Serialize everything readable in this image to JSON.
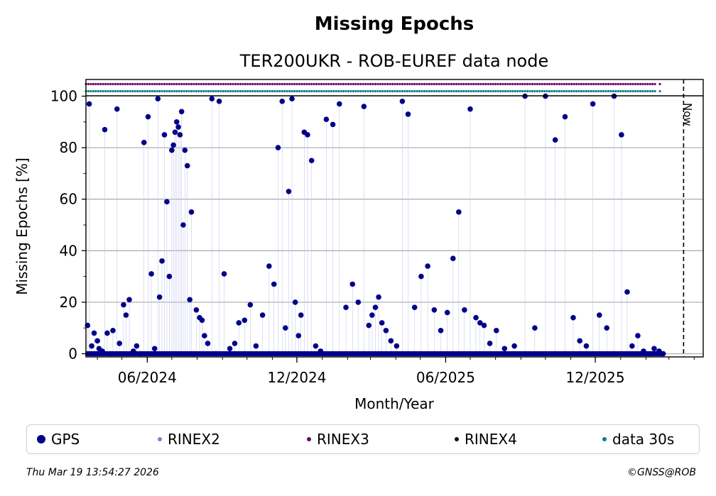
{
  "title": "Missing Epochs",
  "subtitle": "TER200UKR - ROB-EUREF data node",
  "footer": {
    "timestamp": "Thu Mar 19 13:54:27 2026",
    "copyright": "©GNSS@ROB"
  },
  "now_label": "Now",
  "legend": [
    {
      "label": "GPS",
      "color": "#00008b"
    },
    {
      "label": "RINEX2",
      "color": "#8080c0"
    },
    {
      "label": "RINEX3",
      "color": "#6a006a"
    },
    {
      "label": "RINEX4",
      "color": "#200020"
    },
    {
      "label": "data 30s",
      "color": "#008080"
    }
  ],
  "chart_data": {
    "type": "scatter",
    "title": "Missing Epochs",
    "subtitle": "TER200UKR - ROB-EUREF data node",
    "xlabel": "Month/Year",
    "ylabel": "Missing Epochs [%]",
    "ylim": [
      -1,
      107
    ],
    "xlim": [
      "2024-03-18",
      "2026-04-12"
    ],
    "x_ticks": [
      "06/2024",
      "12/2024",
      "06/2025",
      "12/2025"
    ],
    "y_ticks": [
      0,
      20,
      40,
      60,
      80,
      100
    ],
    "grid": "horizontal",
    "legend_position": "bottom",
    "now_date": "2026-03-19",
    "series": [
      {
        "name": "GPS",
        "color": "#00008b",
        "x": [
          "2024-03-20",
          "2024-03-22",
          "2024-03-25",
          "2024-03-28",
          "2024-04-01",
          "2024-04-03",
          "2024-04-07",
          "2024-04-10",
          "2024-04-13",
          "2024-04-17",
          "2024-04-20",
          "2024-04-25",
          "2024-04-28",
          "2024-05-03",
          "2024-05-06",
          "2024-05-10",
          "2024-05-15",
          "2024-05-19",
          "2024-05-24",
          "2024-05-28",
          "2024-06-02",
          "2024-06-06",
          "2024-06-10",
          "2024-06-14",
          "2024-06-16",
          "2024-06-19",
          "2024-06-22",
          "2024-06-25",
          "2024-06-28",
          "2024-07-01",
          "2024-07-03",
          "2024-07-05",
          "2024-07-07",
          "2024-07-09",
          "2024-07-11",
          "2024-07-13",
          "2024-07-15",
          "2024-07-17",
          "2024-07-20",
          "2024-07-23",
          "2024-07-25",
          "2024-07-28",
          "2024-07-31",
          "2024-08-04",
          "2024-08-07",
          "2024-08-10",
          "2024-08-14",
          "2024-08-19",
          "2024-08-24",
          "2024-08-28",
          "2024-09-03",
          "2024-09-10",
          "2024-09-16",
          "2024-09-21",
          "2024-09-28",
          "2024-10-05",
          "2024-10-12",
          "2024-10-20",
          "2024-10-28",
          "2024-11-03",
          "2024-11-08",
          "2024-11-13",
          "2024-11-17",
          "2024-11-21",
          "2024-11-25",
          "2024-11-29",
          "2024-12-03",
          "2024-12-06",
          "2024-12-10",
          "2024-12-14",
          "2024-12-19",
          "2024-12-24",
          "2024-12-30",
          "2025-01-06",
          "2025-01-14",
          "2025-01-22",
          "2025-01-30",
          "2025-02-07",
          "2025-02-14",
          "2025-02-21",
          "2025-02-27",
          "2025-03-03",
          "2025-03-07",
          "2025-03-11",
          "2025-03-15",
          "2025-03-20",
          "2025-03-26",
          "2025-04-02",
          "2025-04-09",
          "2025-04-16",
          "2025-04-24",
          "2025-05-02",
          "2025-05-10",
          "2025-05-18",
          "2025-05-26",
          "2025-06-03",
          "2025-06-10",
          "2025-06-17",
          "2025-06-24",
          "2025-07-01",
          "2025-07-08",
          "2025-07-13",
          "2025-07-18",
          "2025-07-25",
          "2025-08-02",
          "2025-08-12",
          "2025-08-24",
          "2025-09-06",
          "2025-09-18",
          "2025-10-01",
          "2025-10-13",
          "2025-10-25",
          "2025-11-04",
          "2025-11-12",
          "2025-11-20",
          "2025-11-28",
          "2025-12-06",
          "2025-12-15",
          "2025-12-24",
          "2026-01-02",
          "2026-01-09",
          "2026-01-15",
          "2026-01-22",
          "2026-01-29",
          "2026-02-05",
          "2026-02-11",
          "2026-02-17",
          "2026-02-22"
        ],
        "y": [
          11,
          97,
          3,
          8,
          5,
          2,
          1,
          87,
          8,
          0,
          9,
          95,
          4,
          19,
          15,
          21,
          1,
          3,
          0,
          82,
          92,
          31,
          2,
          99,
          22,
          36,
          85,
          59,
          30,
          79,
          81,
          86,
          90,
          88,
          85,
          94,
          50,
          79,
          73,
          21,
          55,
          0,
          17,
          14,
          13,
          7,
          4,
          99,
          0,
          98,
          31,
          2,
          4,
          12,
          13,
          19,
          3,
          15,
          34,
          27,
          80,
          98,
          10,
          63,
          99,
          20,
          7,
          15,
          86,
          85,
          75,
          3,
          1,
          91,
          89,
          97,
          18,
          27,
          20,
          96,
          11,
          15,
          18,
          22,
          12,
          9,
          5,
          3,
          98,
          93,
          18,
          30,
          34,
          17,
          9,
          16,
          37,
          55,
          17,
          95,
          14,
          12,
          11,
          4,
          9,
          2,
          3,
          100,
          10,
          100,
          83,
          92,
          14,
          5,
          3,
          97,
          15,
          10,
          100,
          85,
          24,
          3,
          7,
          1,
          0,
          2,
          1,
          0
        ],
        "zero_days_note": "baseline values near 0 on most remaining days"
      },
      {
        "name": "RINEX3",
        "color": "#6a006a",
        "x_range": [
          "2024-03-18",
          "2026-02-13"
        ],
        "y": 105
      },
      {
        "name": "data 30s",
        "color": "#008080",
        "x_range": [
          "2024-03-18",
          "2026-02-13"
        ],
        "y": 102
      }
    ]
  }
}
